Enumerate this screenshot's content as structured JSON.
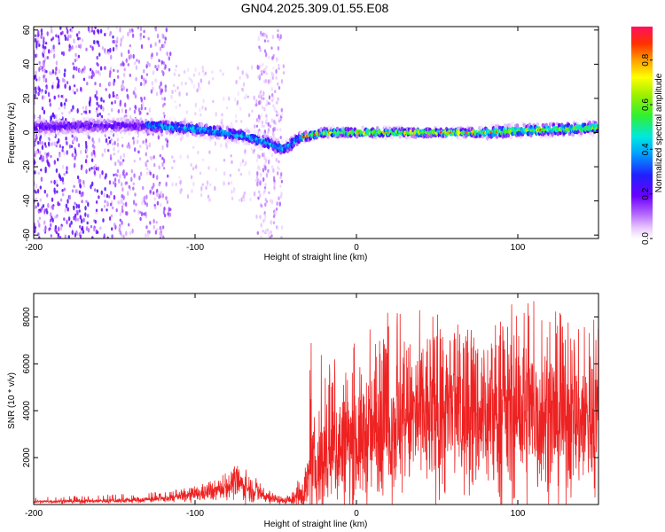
{
  "title": "GN04.2025.309.01.55.E08",
  "colors": {
    "trace": "#ee2222",
    "axis": "#000000"
  },
  "chart_data": [
    {
      "type": "heatmap",
      "name": "spectrogram",
      "xlabel": "Height of straight line (km)",
      "ylabel": "Frequency (Hz)",
      "xlim": [
        -200,
        150
      ],
      "ylim": [
        -62,
        62
      ],
      "xticks": [
        -200,
        -100,
        0,
        100
      ],
      "xtick_labels": [
        "-200",
        "-100",
        "0",
        "100"
      ],
      "yticks": [
        -60,
        -40,
        -20,
        0,
        20,
        40,
        60
      ],
      "ytick_labels": [
        "-60",
        "-40",
        "-20",
        "0",
        "20",
        "40",
        "60"
      ],
      "centerline_hz": [
        [
          -200,
          3
        ],
        [
          -170,
          4
        ],
        [
          -130,
          4
        ],
        [
          -110,
          3
        ],
        [
          -90,
          1
        ],
        [
          -70,
          -2
        ],
        [
          -55,
          -6
        ],
        [
          -45,
          -10
        ],
        [
          -35,
          -3
        ],
        [
          -20,
          0
        ],
        [
          0,
          0
        ],
        [
          50,
          0
        ],
        [
          80,
          0
        ],
        [
          100,
          1
        ],
        [
          130,
          2
        ],
        [
          150,
          3
        ]
      ],
      "colorbar": {
        "label": "Normalized spectral amplitude",
        "range": [
          0,
          0.95
        ],
        "ticks": [
          0.0,
          0.2,
          0.4,
          0.6,
          0.8
        ],
        "tick_labels": [
          "0.0",
          "0.2",
          "0.4",
          "0.6",
          "0.8"
        ]
      }
    },
    {
      "type": "line",
      "name": "snr",
      "xlabel": "Height of straight line (km)",
      "ylabel": "SNR (10 * v/v)",
      "xlim": [
        -200,
        150
      ],
      "ylim": [
        0,
        9000
      ],
      "xticks": [
        -200,
        -100,
        0,
        100
      ],
      "xtick_labels": [
        "-200",
        "-100",
        "0",
        "100"
      ],
      "yticks": [
        2000,
        4000,
        6000,
        8000
      ],
      "ytick_labels": [
        "2000",
        "4000",
        "6000",
        "8000"
      ],
      "envelope": {
        "x": [
          -200,
          -150,
          -120,
          -100,
          -85,
          -75,
          -65,
          -55,
          -45,
          -38,
          -32,
          -28,
          -22,
          -15,
          0,
          20,
          40,
          60,
          80,
          100,
          120,
          140,
          150
        ],
        "mean": [
          120,
          160,
          240,
          420,
          620,
          950,
          650,
          320,
          150,
          250,
          650,
          1400,
          1800,
          2300,
          2700,
          3400,
          3800,
          3900,
          3800,
          3900,
          3700,
          3600,
          3700
        ],
        "amp": [
          60,
          90,
          130,
          280,
          380,
          600,
          500,
          250,
          120,
          250,
          800,
          1500,
          2200,
          2400,
          2400,
          2700,
          3000,
          3200,
          3000,
          3300,
          3000,
          2800,
          2800
        ],
        "peak": [
          300,
          450,
          550,
          800,
          1100,
          1800,
          1400,
          700,
          350,
          600,
          2600,
          7100,
          6400,
          6700,
          7000,
          8600,
          8400,
          8000,
          7800,
          8900,
          8700,
          8100,
          8200
        ]
      }
    }
  ]
}
